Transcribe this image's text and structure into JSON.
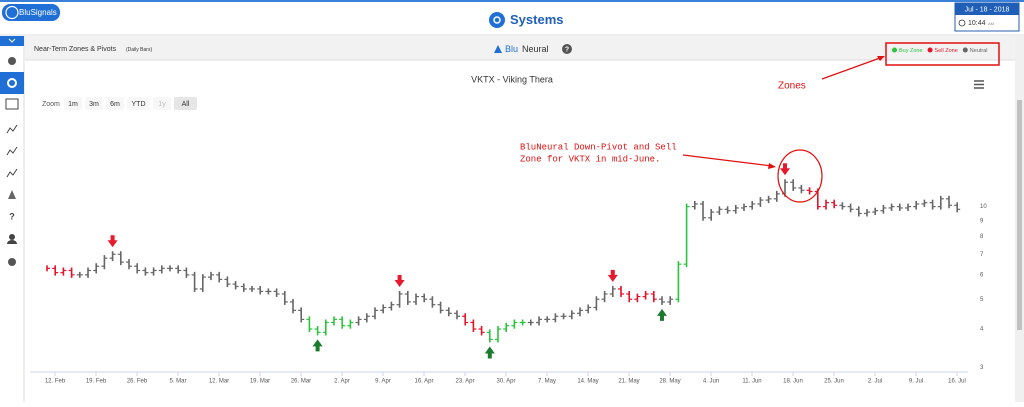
{
  "header": {
    "logo": "BluSignals",
    "title": "Systems",
    "date": "Jul - 18 - 2018",
    "time": "10:44",
    "time_suffix": "AM"
  },
  "subheader": {
    "panel_title": "Near-Term Zones & Pivots",
    "panel_note": "(Daily Bars)",
    "brand_blu": "Blu",
    "brand_neural": "Neural",
    "help": "?"
  },
  "sidebar": {
    "help": "?"
  },
  "zoom": {
    "label": "Zoom",
    "buttons": [
      "1m",
      "3m",
      "6m",
      "YTD",
      "1y",
      "All"
    ]
  },
  "annotations": {
    "pivot_note": [
      "BluNeural Down-Pivot and Sell",
      "Zone for VKTX in mid-June."
    ],
    "zones_note": "Zones"
  },
  "chart_data": {
    "type": "ohlc",
    "title": "VKTX - Viking Thera",
    "log_scale": true,
    "grid": false,
    "ylim": [
      2.9,
      20
    ],
    "yticks": [
      3,
      4,
      5,
      6,
      7,
      8,
      9,
      10
    ],
    "categories": [
      "12. Feb",
      null,
      null,
      null,
      null,
      "19. Feb",
      null,
      null,
      null,
      null,
      "26. Feb",
      null,
      null,
      null,
      null,
      "5. Mar",
      null,
      null,
      null,
      null,
      "12. Mar",
      null,
      null,
      null,
      null,
      "19. Mar",
      null,
      null,
      null,
      null,
      "26. Mar",
      null,
      null,
      null,
      null,
      "2. Apr",
      null,
      null,
      null,
      null,
      "9. Apr",
      null,
      null,
      null,
      null,
      "16. Apr",
      null,
      null,
      null,
      null,
      "23. Apr",
      null,
      null,
      null,
      null,
      "30. Apr",
      null,
      null,
      null,
      null,
      "7. May",
      null,
      null,
      null,
      null,
      "14. May",
      null,
      null,
      null,
      null,
      "21. May",
      null,
      null,
      null,
      null,
      "28. May",
      null,
      null,
      null,
      null,
      "4. Jun",
      null,
      null,
      null,
      null,
      "11. Jun",
      null,
      null,
      null,
      null,
      "18. Jun",
      null,
      null,
      null,
      null,
      "25. Jun",
      null,
      null,
      null,
      null,
      "2. Jul",
      null,
      null,
      null,
      null,
      "9. Jul",
      null,
      null,
      null,
      null,
      "16. Jul",
      null
    ],
    "values": [
      6.3,
      6.1,
      6.2,
      6.0,
      6.0,
      6.2,
      6.4,
      6.8,
      7.0,
      6.6,
      6.4,
      6.2,
      6.1,
      6.2,
      6.3,
      6.3,
      6.2,
      6.0,
      5.4,
      5.9,
      6.0,
      5.8,
      5.6,
      5.5,
      5.4,
      5.4,
      5.3,
      5.3,
      5.2,
      4.9,
      4.6,
      4.3,
      4.0,
      3.9,
      4.2,
      4.3,
      4.1,
      4.2,
      4.3,
      4.4,
      4.6,
      4.7,
      4.8,
      5.2,
      4.9,
      5.1,
      5.0,
      4.8,
      4.6,
      4.5,
      4.4,
      4.2,
      4.0,
      3.9,
      3.7,
      4.0,
      4.1,
      4.2,
      4.2,
      4.2,
      4.3,
      4.3,
      4.4,
      4.4,
      4.5,
      4.6,
      4.7,
      5.0,
      5.2,
      5.4,
      5.2,
      5.0,
      5.1,
      5.2,
      5.0,
      4.9,
      5.0,
      6.5,
      10.0,
      10.2,
      9.2,
      9.6,
      9.8,
      9.7,
      9.9,
      10.0,
      10.2,
      10.5,
      10.6,
      11.0,
      12.0,
      11.5,
      11.3,
      11.2,
      10.0,
      10.3,
      10.1,
      10.0,
      9.8,
      9.5,
      9.6,
      9.7,
      9.9,
      10.0,
      9.9,
      10.0,
      10.2,
      10.3,
      10.0,
      10.6,
      10.1,
      9.8
    ],
    "zones": [
      {
        "name": "Buy Zone",
        "color": "#2bc43c"
      },
      {
        "name": "Sell Zone",
        "color": "#e5132a"
      },
      {
        "name": "Neutral",
        "color": "#666666"
      }
    ],
    "bar_zones": [
      1,
      1,
      1,
      1,
      2,
      2,
      2,
      2,
      2,
      2,
      2,
      2,
      2,
      2,
      2,
      2,
      2,
      2,
      2,
      2,
      2,
      2,
      2,
      2,
      2,
      2,
      2,
      2,
      2,
      2,
      2,
      2,
      0,
      0,
      0,
      0,
      0,
      0,
      2,
      2,
      2,
      2,
      2,
      2,
      2,
      2,
      2,
      2,
      2,
      2,
      2,
      1,
      1,
      1,
      0,
      0,
      0,
      0,
      0,
      2,
      2,
      2,
      2,
      2,
      2,
      2,
      2,
      2,
      2,
      2,
      1,
      1,
      1,
      1,
      1,
      2,
      2,
      0,
      0,
      2,
      2,
      2,
      2,
      2,
      2,
      2,
      2,
      2,
      2,
      2,
      2,
      2,
      2,
      1,
      1,
      1,
      1,
      2,
      2,
      2,
      2,
      2,
      2,
      2,
      2,
      2,
      2,
      2,
      2,
      2,
      2,
      2
    ],
    "down_pivots": [
      8,
      43,
      69,
      90
    ],
    "up_pivots": [
      33,
      54,
      75
    ],
    "down_pivot_color": "#e8192c",
    "up_pivot_color": "#1c7a2c"
  }
}
